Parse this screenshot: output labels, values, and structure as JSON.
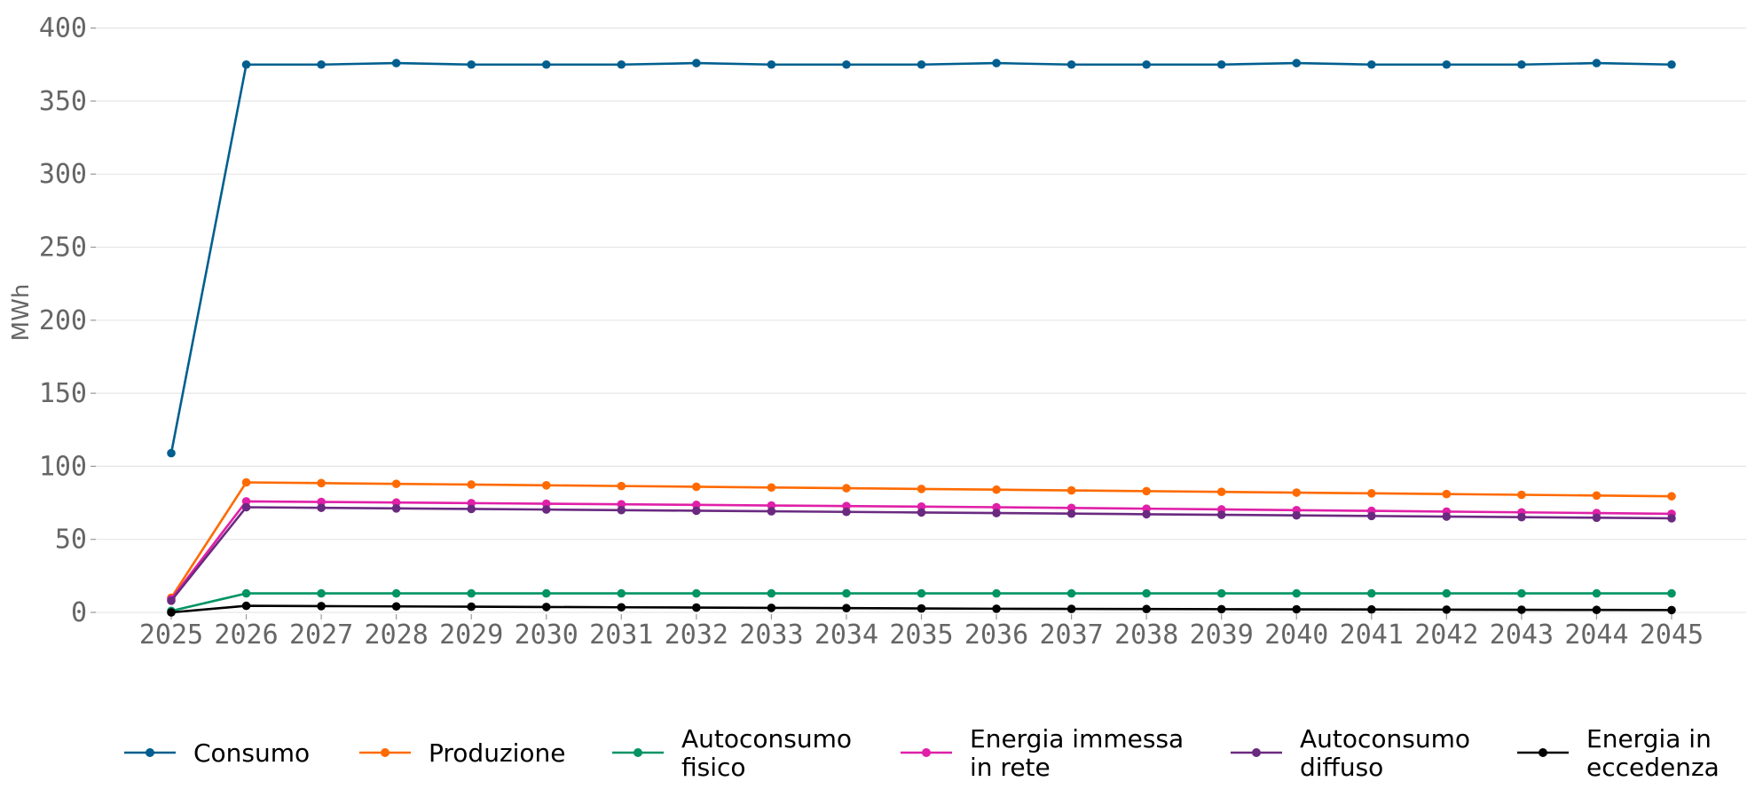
{
  "chart_data": {
    "type": "line",
    "title": "",
    "xlabel": "",
    "ylabel": "MWh",
    "ylim": [
      0,
      400
    ],
    "yticks": [
      "0",
      "50",
      "100",
      "150",
      "200",
      "250",
      "300",
      "350",
      "400"
    ],
    "grid": "horizontal",
    "legend_position": "bottom",
    "x": [
      "2025",
      "2026",
      "2027",
      "2028",
      "2029",
      "2030",
      "2031",
      "2032",
      "2033",
      "2034",
      "2035",
      "2036",
      "2037",
      "2038",
      "2039",
      "2040",
      "2041",
      "2042",
      "2043",
      "2044",
      "2045"
    ],
    "series": [
      {
        "name": "Consumo",
        "color": "#005f8f",
        "values": [
          109,
          375,
          375,
          376,
          375,
          375,
          375,
          376,
          375,
          375,
          375,
          376,
          375,
          375,
          375,
          376,
          375,
          375,
          375,
          376,
          375
        ]
      },
      {
        "name": "Produzione",
        "color": "#ff6a00",
        "values": [
          10,
          89,
          88.5,
          88,
          87.5,
          87,
          86.5,
          86,
          85.5,
          85,
          84.5,
          84,
          83.5,
          83,
          82.5,
          82,
          81.5,
          81,
          80.5,
          80,
          79.5
        ]
      },
      {
        "name": "Autoconsumo\nfisico",
        "color": "#009464",
        "values": [
          1,
          13,
          13,
          13,
          13,
          13,
          13,
          13,
          13,
          13,
          13,
          13,
          13,
          13,
          13,
          13,
          13,
          13,
          13,
          13,
          13
        ]
      },
      {
        "name": "Energia immessa\nin rete",
        "color": "#e020a8",
        "values": [
          9,
          76,
          75.6,
          75.2,
          74.8,
          74.4,
          74,
          73.6,
          73.2,
          72.8,
          72.4,
          72,
          71.5,
          71,
          70.5,
          70,
          69.5,
          69,
          68.5,
          68,
          67.5
        ]
      },
      {
        "name": "Autoconsumo\ndiffuso",
        "color": "#6a2a80",
        "values": [
          8,
          72,
          71.6,
          71.2,
          70.8,
          70.4,
          70,
          69.6,
          69.2,
          68.8,
          68.4,
          68,
          67.6,
          67.2,
          66.8,
          66.4,
          66,
          65.6,
          65.2,
          64.8,
          64.4
        ]
      },
      {
        "name": "Energia in\neccedenza",
        "color": "#000000",
        "values": [
          0,
          4.5,
          4.3,
          4.1,
          3.9,
          3.7,
          3.5,
          3.3,
          3.1,
          2.9,
          2.7,
          2.5,
          2.4,
          2.3,
          2.2,
          2.1,
          2,
          1.9,
          1.8,
          1.7,
          1.6
        ]
      }
    ]
  }
}
